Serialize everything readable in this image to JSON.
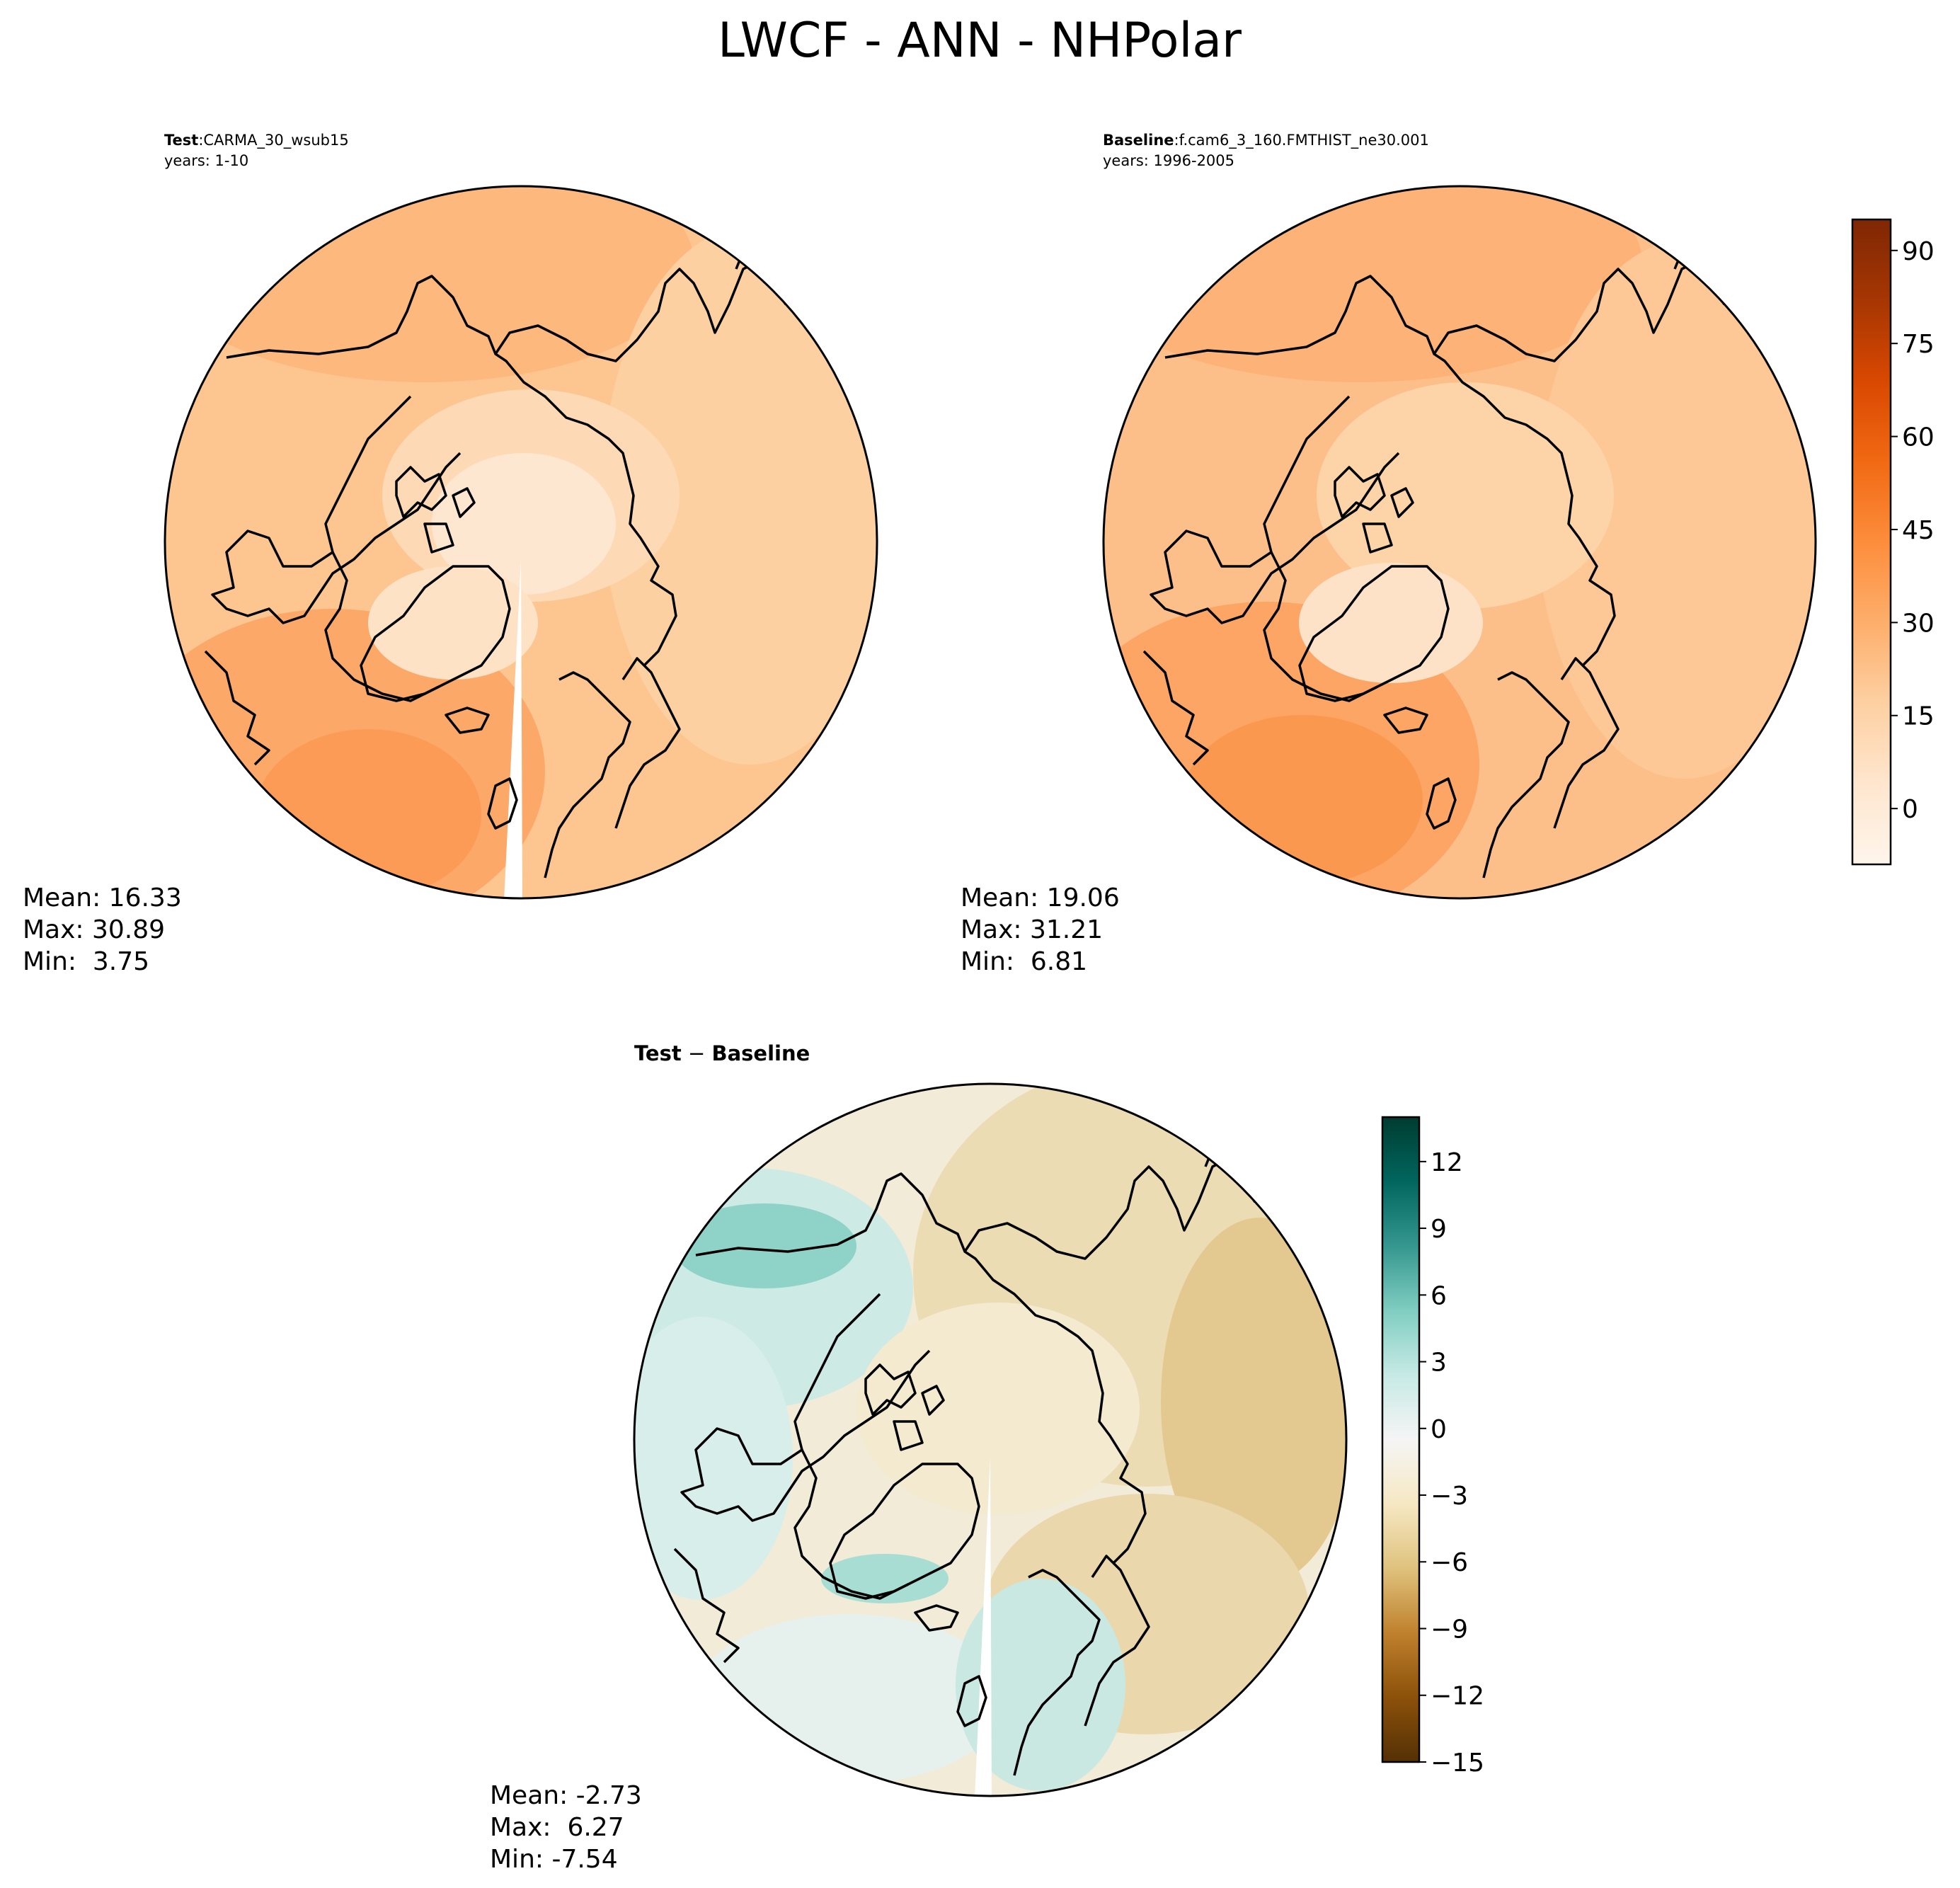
{
  "figure": {
    "title": "LWCF - ANN - NHPolar"
  },
  "chart_data": [
    {
      "type": "heatmap",
      "panel": "test",
      "label_bold": "Test",
      "label_sep": ":",
      "case_name": "CARMA_30_wsub15",
      "years": "years: 1-10",
      "stats": {
        "mean": "Mean: 16.33",
        "max": "Max: 30.89",
        "min": "Min:  3.75"
      },
      "colormap": "Oranges",
      "projection": "north polar stereographic",
      "approx_field": {
        "arctic_center": 8,
        "southwest_max": 30,
        "east_side": 20
      }
    },
    {
      "type": "heatmap",
      "panel": "baseline",
      "label_bold": "Baseline",
      "label_sep": ":",
      "case_name": "f.cam6_3_160.FMTHIST_ne30.001",
      "years": "years: 1996-2005",
      "stats": {
        "mean": "Mean: 19.06",
        "max": "Max: 31.21",
        "min": "Min:  6.81"
      },
      "colormap": "Oranges",
      "projection": "north polar stereographic",
      "approx_field": {
        "arctic_center": 12,
        "southwest_max": 31,
        "east_side": 22
      },
      "colorbar": {
        "ticks": [
          "90",
          "75",
          "60",
          "45",
          "30",
          "15",
          "0"
        ],
        "tick_values": [
          90,
          75,
          60,
          45,
          30,
          15,
          0
        ],
        "vmin": -9,
        "vmax": 95,
        "levels_step": 4.5
      }
    },
    {
      "type": "heatmap",
      "panel": "difference",
      "label_bold": "Test",
      "label_sep": " − ",
      "label_bold2": "Baseline",
      "stats": {
        "mean": "Mean: -2.73",
        "max": "Max:  6.27",
        "min": "Min: -7.54"
      },
      "colormap": "BrBG",
      "projection": "north polar stereographic",
      "approx_field": {
        "pacific_max": 6,
        "europe_max": 3,
        "east_min": -6
      },
      "colorbar": {
        "ticks": [
          "12",
          "9",
          "6",
          "3",
          "0",
          "−3",
          "−6",
          "−9",
          "−12",
          "−15"
        ],
        "tick_values": [
          12,
          9,
          6,
          3,
          0,
          -3,
          -6,
          -9,
          -12,
          -15
        ],
        "vmin": -15,
        "vmax": 14,
        "levels_step": 1
      }
    }
  ],
  "colors": {
    "oranges": [
      "#fff5eb",
      "#fee6ce",
      "#fdd0a2",
      "#fdae6b",
      "#fd8d3c",
      "#f16913",
      "#d94801",
      "#a63603",
      "#7f2704"
    ],
    "brbg": [
      "#543005",
      "#8c510a",
      "#bf812d",
      "#dfc27d",
      "#f6e8c3",
      "#f5f5f5",
      "#c7eae5",
      "#80cdc1",
      "#35978f",
      "#01665e",
      "#003c30"
    ],
    "coast": "#000000"
  }
}
